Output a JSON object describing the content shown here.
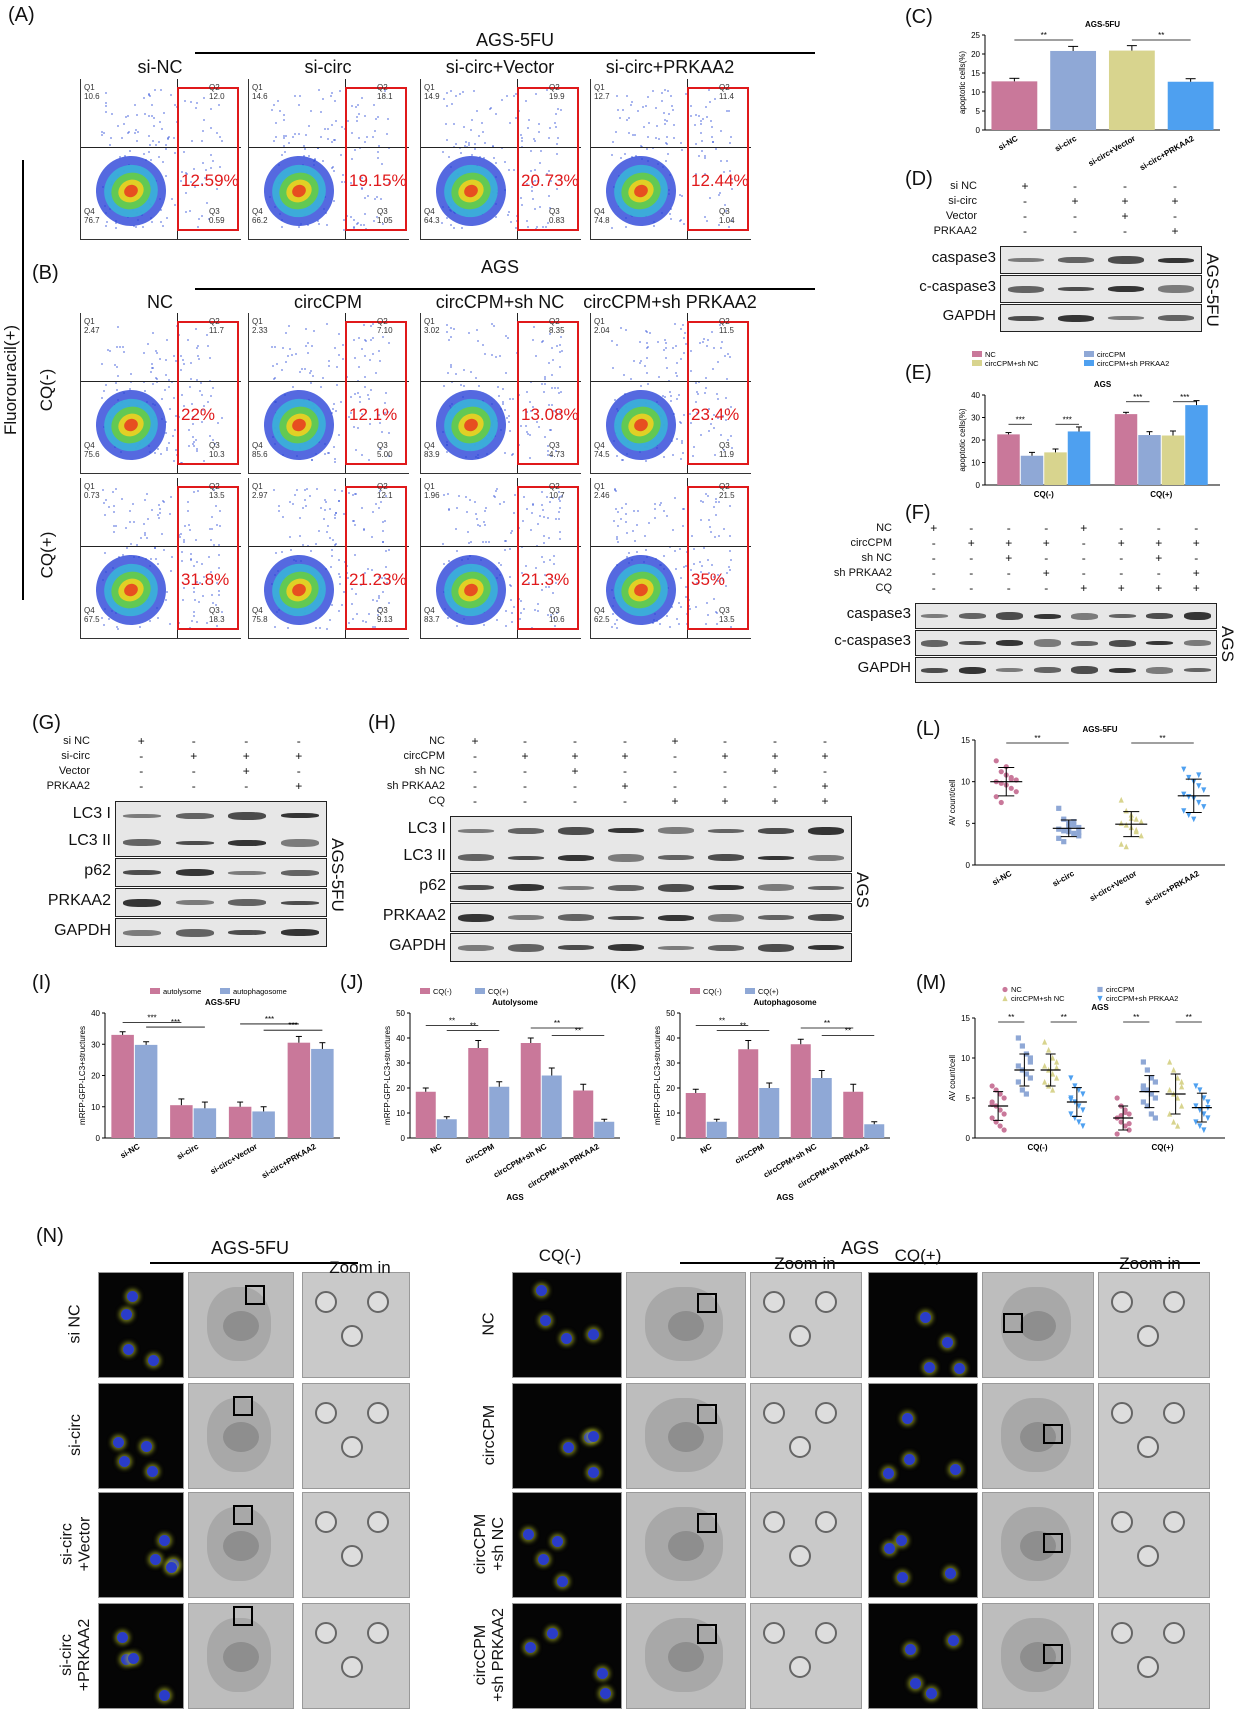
{
  "panel_labels": {
    "A": "(A)",
    "B": "(B)",
    "C": "(C)",
    "D": "(D)",
    "E": "(E)",
    "F": "(F)",
    "G": "(G)",
    "H": "(H)",
    "I": "(I)",
    "J": "(J)",
    "K": "(K)",
    "L": "(L)",
    "M": "(M)",
    "N": "(N)"
  },
  "panelA": {
    "group": "AGS-5FU",
    "columns": [
      "si-NC",
      "si-circ",
      "si-circ+Vector",
      "si-circ+PRKAA2"
    ],
    "percents": [
      "12.59%",
      "19.15%",
      "20.73%",
      "12.44%"
    ],
    "quads": [
      {
        "q1": "Q1",
        "q1v": "10.6",
        "q2": "Q2",
        "q2v": "12.0",
        "q3": "Q3",
        "q3v": "0.59",
        "q4": "Q4",
        "q4v": "76.7"
      },
      {
        "q1": "Q1",
        "q1v": "14.6",
        "q2": "Q2",
        "q2v": "18.1",
        "q3": "Q3",
        "q3v": "1.05",
        "q4": "Q4",
        "q4v": "66.2"
      },
      {
        "q1": "Q1",
        "q1v": "14.9",
        "q2": "Q2",
        "q2v": "19.9",
        "q3": "Q3",
        "q3v": "0.83",
        "q4": "Q4",
        "q4v": "64.3"
      },
      {
        "q1": "Q1",
        "q1v": "12.7",
        "q2": "Q2",
        "q2v": "11.4",
        "q3": "Q3",
        "q3v": "1.04",
        "q4": "Q4",
        "q4v": "74.8"
      }
    ]
  },
  "panelB": {
    "group": "AGS",
    "side_label": "Fluorouracil(+)",
    "row_labels": [
      "CQ(-)",
      "CQ(+)"
    ],
    "columns": [
      "NC",
      "circCPM",
      "circCPM+sh NC",
      "circCPM+sh PRKAA2"
    ],
    "percents_cq_minus": [
      "22%",
      "12.1%",
      "13.08%",
      "23.4%"
    ],
    "percents_cq_plus": [
      "31.8%",
      "21.23%",
      "21.3%",
      "35%"
    ],
    "quads_cq_minus": [
      {
        "q1v": "2.47",
        "q2v": "11.7",
        "q3v": "10.3",
        "q4v": "75.6"
      },
      {
        "q1v": "2.33",
        "q2v": "7.10",
        "q3v": "5.00",
        "q4v": "85.6"
      },
      {
        "q1v": "3.02",
        "q2v": "8.35",
        "q3v": "4.73",
        "q4v": "83.9"
      },
      {
        "q1v": "2.04",
        "q2v": "11.5",
        "q3v": "11.9",
        "q4v": "74.5"
      }
    ],
    "quads_cq_plus": [
      {
        "q1v": "0.73",
        "q2v": "13.5",
        "q3v": "18.3",
        "q4v": "67.5"
      },
      {
        "q1v": "2.97",
        "q2v": "12.1",
        "q3v": "9.13",
        "q4v": "75.8"
      },
      {
        "q1v": "1.96",
        "q2v": "10.7",
        "q3v": "10.6",
        "q4v": "83.7"
      },
      {
        "q1v": "2.46",
        "q2v": "21.5",
        "q3v": "13.5",
        "q4v": "62.5"
      }
    ]
  },
  "panelD": {
    "conditions": [
      "si NC",
      "si-circ",
      "Vector",
      "PRKAA2"
    ],
    "signs": [
      [
        "+",
        "-",
        "-",
        "-"
      ],
      [
        "-",
        "+",
        "+",
        "+"
      ],
      [
        "-",
        "-",
        "+",
        "-"
      ],
      [
        "-",
        "-",
        "-",
        "+"
      ]
    ],
    "bands": [
      "caspase3",
      "c-caspase3",
      "GAPDH"
    ],
    "side": "AGS-5FU"
  },
  "panelF": {
    "conditions": [
      "NC",
      "circCPM",
      "sh NC",
      "sh PRKAA2",
      "CQ"
    ],
    "signs": [
      [
        "+",
        "-",
        "-",
        "-",
        "+",
        "-",
        "-",
        "-"
      ],
      [
        "-",
        "+",
        "+",
        "+",
        "-",
        "+",
        "+",
        "+"
      ],
      [
        "-",
        "-",
        "+",
        "-",
        "-",
        "-",
        "+",
        "-"
      ],
      [
        "-",
        "-",
        "-",
        "+",
        "-",
        "-",
        "-",
        "+"
      ],
      [
        "-",
        "-",
        "-",
        "-",
        "+",
        "+",
        "+",
        "+"
      ]
    ],
    "bands": [
      "caspase3",
      "c-caspase3",
      "GAPDH"
    ],
    "side": "AGS"
  },
  "panelG": {
    "conditions": [
      "si NC",
      "si-circ",
      "Vector",
      "PRKAA2"
    ],
    "signs": [
      [
        "+",
        "-",
        "-",
        "-"
      ],
      [
        "-",
        "+",
        "+",
        "+"
      ],
      [
        "-",
        "-",
        "+",
        "-"
      ],
      [
        "-",
        "-",
        "-",
        "+"
      ]
    ],
    "bands": [
      "LC3 I",
      "LC3 II",
      "p62",
      "PRKAA2",
      "GAPDH"
    ],
    "side": "AGS-5FU"
  },
  "panelH": {
    "conditions": [
      "NC",
      "circCPM",
      "sh NC",
      "sh PRKAA2",
      "CQ"
    ],
    "signs": [
      [
        "+",
        "-",
        "-",
        "-",
        "+",
        "-",
        "-",
        "-"
      ],
      [
        "-",
        "+",
        "+",
        "+",
        "-",
        "+",
        "+",
        "+"
      ],
      [
        "-",
        "-",
        "+",
        "-",
        "-",
        "-",
        "+",
        "-"
      ],
      [
        "-",
        "-",
        "-",
        "+",
        "-",
        "-",
        "-",
        "+"
      ],
      [
        "-",
        "-",
        "-",
        "-",
        "+",
        "+",
        "+",
        "+"
      ]
    ],
    "bands": [
      "LC3 I",
      "LC3 II",
      "p62",
      "PRKAA2",
      "GAPDH"
    ],
    "side": "AGS"
  },
  "panelN": {
    "left_group": "AGS-5FU",
    "right_group": "AGS",
    "zoom": "Zoom in",
    "cq_minus": "CQ(-)",
    "cq_plus": "CQ(+)",
    "left_rows": [
      "si NC",
      "si-circ",
      "si-circ\n+Vector",
      "si-circ\n+PRKAA2"
    ],
    "right_rows": [
      "NC",
      "circCPM",
      "circCPM\n+sh NC",
      "circCPM\n+sh PRKAA2"
    ]
  },
  "chart_data": [
    {
      "id": "C",
      "type": "bar",
      "title": "AGS-5FU",
      "ylabel": "apoptotic cells(%)",
      "ylim": [
        0,
        25
      ],
      "yticks": [
        0,
        5,
        10,
        15,
        20,
        25
      ],
      "categories": [
        "si-NC",
        "si-circ",
        "si-circ+Vector",
        "si-circ+PRKAA2"
      ],
      "values": [
        12.8,
        20.8,
        20.9,
        12.7
      ],
      "errors": [
        0.8,
        1.2,
        1.3,
        0.8
      ],
      "colors": [
        "#c9789a",
        "#8fa8d6",
        "#d8d48e",
        "#4ea0f0"
      ],
      "significance": [
        {
          "from": 0,
          "to": 1,
          "label": "**"
        },
        {
          "from": 2,
          "to": 3,
          "label": "**"
        }
      ]
    },
    {
      "id": "E",
      "type": "bar",
      "title": "AGS",
      "ylabel": "apoptotic cells(%)",
      "ylim": [
        0,
        40
      ],
      "yticks": [
        0,
        10,
        20,
        30,
        40
      ],
      "categories": [
        "CQ(-)",
        "CQ(+)"
      ],
      "series": [
        {
          "name": "NC",
          "values": [
            22.5,
            31.5
          ],
          "errors": [
            0.8,
            0.8
          ],
          "color": "#c9789a"
        },
        {
          "name": "circCPM",
          "values": [
            13.0,
            22.2
          ],
          "errors": [
            1.5,
            1.5
          ],
          "color": "#8fa8d6"
        },
        {
          "name": "circCPM+sh NC",
          "values": [
            14.5,
            22.0
          ],
          "errors": [
            1.5,
            2.0
          ],
          "color": "#d8d48e"
        },
        {
          "name": "circCPM+sh PRKAA2",
          "values": [
            23.8,
            35.5
          ],
          "errors": [
            2.0,
            2.0
          ],
          "color": "#4ea0f0"
        }
      ],
      "legend": "top",
      "significance_label": "***"
    },
    {
      "id": "I",
      "type": "bar",
      "title": "AGS-5FU",
      "ylabel": "mRFP-GFP-LC3+structures",
      "ylim": [
        0,
        40
      ],
      "yticks": [
        0,
        10,
        20,
        30,
        40
      ],
      "categories": [
        "si-NC",
        "si-circ",
        "si-circ+Vector",
        "si-circ+PRKAA2"
      ],
      "series": [
        {
          "name": "autolysome",
          "values": [
            33.0,
            10.5,
            10.0,
            30.5
          ],
          "errors": [
            1.0,
            2.0,
            1.5,
            2.0
          ],
          "color": "#c9789a"
        },
        {
          "name": "autophagosome",
          "values": [
            29.8,
            9.5,
            8.5,
            28.5
          ],
          "errors": [
            1.0,
            2.0,
            1.5,
            2.0
          ],
          "color": "#8fa8d6"
        }
      ],
      "legend": "top",
      "significance_label": "***"
    },
    {
      "id": "J",
      "type": "bar",
      "title": "Autolysome",
      "ylabel": "mRFP-GFP-LC3+structures",
      "xlabel": "AGS",
      "ylim": [
        0,
        50
      ],
      "yticks": [
        0,
        10,
        20,
        30,
        40,
        50
      ],
      "categories": [
        "NC",
        "circCPM",
        "circCPM+sh NC",
        "circCPM+sh PRKAA2"
      ],
      "series": [
        {
          "name": "CQ(-)",
          "values": [
            18.5,
            36.0,
            38.0,
            19.0
          ],
          "errors": [
            1.5,
            3.0,
            2.0,
            2.5
          ],
          "color": "#c9789a"
        },
        {
          "name": "CQ(+)",
          "values": [
            7.5,
            20.5,
            25.0,
            6.5
          ],
          "errors": [
            1.0,
            2.0,
            3.0,
            1.0
          ],
          "color": "#8fa8d6"
        }
      ],
      "legend": "top",
      "significance_label": "**"
    },
    {
      "id": "K",
      "type": "bar",
      "title": "Autophagosome",
      "ylabel": "mRFP-GFP-LC3+structures",
      "xlabel": "AGS",
      "ylim": [
        0,
        50
      ],
      "yticks": [
        0,
        10,
        20,
        30,
        40,
        50
      ],
      "categories": [
        "NC",
        "circCPM",
        "circCPM+sh NC",
        "circCPM+sh PRKAA2"
      ],
      "series": [
        {
          "name": "CQ(-)",
          "values": [
            18.0,
            35.5,
            37.5,
            18.5
          ],
          "errors": [
            1.5,
            3.5,
            2.0,
            3.0
          ],
          "color": "#c9789a"
        },
        {
          "name": "CQ(+)",
          "values": [
            6.5,
            20.0,
            24.0,
            5.5
          ],
          "errors": [
            1.0,
            2.0,
            3.0,
            1.0
          ],
          "color": "#8fa8d6"
        }
      ],
      "legend": "top",
      "significance_label": "**"
    },
    {
      "id": "L",
      "type": "scatter",
      "title": "AGS-5FU",
      "ylabel": "AV count/cell",
      "ylim": [
        0,
        15
      ],
      "yticks": [
        0,
        5,
        10,
        15
      ],
      "categories": [
        "si-NC",
        "si-circ",
        "si-circ+Vector",
        "si-circ+PRKAA2"
      ],
      "means": [
        10.0,
        4.4,
        4.9,
        8.3
      ],
      "sd": [
        1.7,
        1.0,
        1.5,
        2.0
      ],
      "colors": [
        "#c9789a",
        "#8fa8d6",
        "#d8d48e",
        "#4ea0f0"
      ],
      "markers": [
        "circle",
        "square",
        "triangle",
        "triangle-down"
      ],
      "points": [
        [
          12.5,
          11.2,
          10.8,
          10.5,
          10.2,
          10.0,
          9.8,
          9.6,
          9.2,
          8.8,
          8.2,
          7.5,
          11.8,
          10.3
        ],
        [
          6.8,
          5.5,
          5.0,
          4.8,
          4.5,
          4.3,
          4.1,
          4.0,
          3.8,
          3.5,
          3.2,
          2.8,
          4.6,
          5.2,
          3.9
        ],
        [
          7.8,
          6.5,
          6.0,
          5.5,
          5.2,
          5.0,
          4.8,
          4.5,
          4.0,
          3.5,
          2.5,
          2.2,
          5.6,
          4.2
        ],
        [
          11.5,
          10.5,
          10.0,
          9.5,
          9.0,
          8.5,
          8.2,
          8.0,
          7.5,
          7.0,
          6.5,
          6.0,
          5.5,
          10.8
        ]
      ],
      "significance": [
        {
          "from": 0,
          "to": 1,
          "label": "**"
        },
        {
          "from": 2,
          "to": 3,
          "label": "**"
        }
      ]
    },
    {
      "id": "M",
      "type": "scatter",
      "title": "AGS",
      "ylabel": "AV count/cell",
      "ylim": [
        0,
        15
      ],
      "yticks": [
        0,
        5,
        10,
        15
      ],
      "categories": [
        "CQ(-)",
        "CQ(+)"
      ],
      "series": [
        {
          "name": "NC",
          "color": "#c9789a",
          "marker": "circle",
          "means": [
            4.0,
            2.5
          ],
          "sd": [
            1.8,
            1.5
          ],
          "points": [
            [
              6.5,
              6.0,
              5.5,
              5.0,
              4.5,
              4.0,
              3.5,
              3.0,
              2.5,
              2.0,
              1.5,
              1.0,
              4.2
            ],
            [
              5.0,
              4.0,
              3.5,
              3.0,
              2.5,
              2.0,
              1.5,
              1.0,
              0.5,
              2.8,
              3.2,
              1.8
            ]
          ]
        },
        {
          "name": "circCPM",
          "color": "#8fa8d6",
          "marker": "square",
          "means": [
            8.5,
            5.8
          ],
          "sd": [
            2.0,
            2.0
          ],
          "points": [
            [
              12.5,
              11.5,
              10.5,
              10.0,
              9.0,
              8.5,
              8.0,
              7.5,
              7.0,
              6.0,
              5.5,
              9.5
            ],
            [
              9.5,
              8.5,
              7.5,
              7.0,
              6.5,
              6.0,
              5.5,
              5.0,
              4.5,
              4.0,
              3.0,
              2.5,
              6.2
            ]
          ]
        },
        {
          "name": "circCPM+sh NC",
          "color": "#d8d48e",
          "marker": "triangle",
          "means": [
            8.5,
            5.5
          ],
          "sd": [
            2.0,
            2.5
          ],
          "points": [
            [
              12.0,
              11.0,
              10.0,
              9.5,
              9.0,
              8.5,
              8.0,
              7.5,
              7.0,
              6.5,
              6.0,
              8.8
            ],
            [
              9.5,
              8.5,
              7.5,
              7.0,
              6.0,
              5.5,
              5.0,
              4.0,
              3.0,
              2.0,
              1.5,
              6.4
            ]
          ]
        },
        {
          "name": "circCPM+sh PRKAA2",
          "color": "#4ea0f0",
          "marker": "triangle-down",
          "means": [
            4.5,
            3.8
          ],
          "sd": [
            1.8,
            1.8
          ],
          "points": [
            [
              7.5,
              6.5,
              6.0,
              5.5,
              5.0,
              4.5,
              4.0,
              3.5,
              3.0,
              2.5,
              2.0,
              1.5,
              4.8
            ],
            [
              6.5,
              6.0,
              5.0,
              4.5,
              4.0,
              3.5,
              3.0,
              2.5,
              2.0,
              1.5,
              1.0,
              3.8
            ]
          ]
        }
      ],
      "legend": "top",
      "significance_label": "**"
    }
  ]
}
